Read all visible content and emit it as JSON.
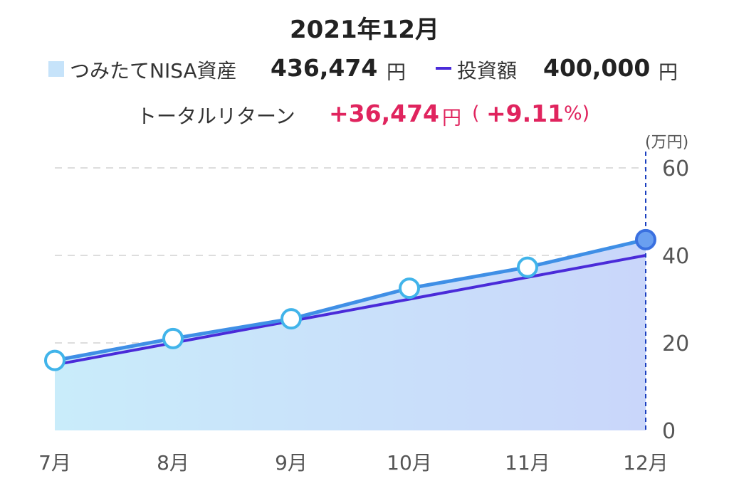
{
  "header": {
    "title": "2021年12月"
  },
  "legend": {
    "asset_label": "つみたてNISA資産",
    "asset_value": "436,474",
    "asset_unit": "円",
    "invest_label": "投資額",
    "invest_value": "400,000",
    "invest_unit": "円"
  },
  "total_return": {
    "label": "トータルリターン",
    "amount": "+36,474",
    "amount_unit": "円",
    "paren_open": "(",
    "percent": "+9.11",
    "percent_unit": "%)"
  },
  "colors": {
    "asset_line": "#3f8fe6",
    "asset_fill_start": "#c9ecfa",
    "asset_fill_end": "#c9d6fa",
    "invest_line": "#4a2bd9",
    "accent": "#e0245e",
    "cursor": "#1a3fbf"
  },
  "chart_data": {
    "type": "line",
    "categories": [
      "7月",
      "8月",
      "9月",
      "10月",
      "11月",
      "12月"
    ],
    "ylabel": "(万円)",
    "ylim": [
      0,
      60
    ],
    "yticks": [
      0,
      20,
      40,
      60
    ],
    "grid": true,
    "series": [
      {
        "name": "つみたてNISA資産",
        "values": [
          16,
          21,
          25.5,
          32.5,
          37.3,
          43.6
        ],
        "style": "area-line-markers"
      },
      {
        "name": "投資額",
        "values": [
          15,
          20,
          25,
          30,
          35,
          40
        ],
        "style": "line"
      }
    ],
    "highlight_category": "12月"
  }
}
